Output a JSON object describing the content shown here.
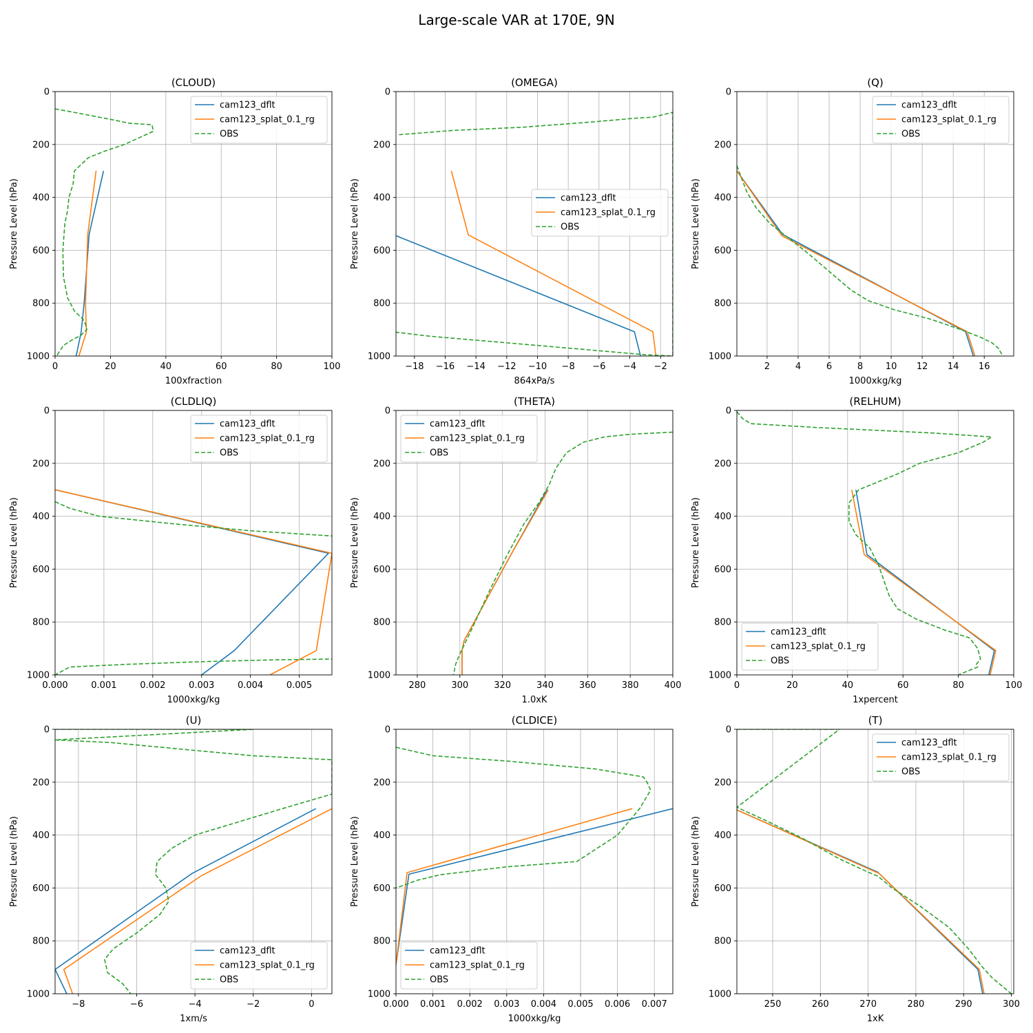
{
  "figure": {
    "title": "Large-scale VAR at 170E, 9N",
    "ylabel": "Pressure Level (hPa)"
  },
  "series_styles": [
    {
      "name": "cam123_dflt",
      "color": "#1f77b4",
      "dash": "solid"
    },
    {
      "name": "cam123_splat_0.1_rg",
      "color": "#ff7f0e",
      "dash": "solid"
    },
    {
      "name": "OBS",
      "color": "#2ca02c",
      "dash": "dashed"
    }
  ],
  "chart_data": [
    {
      "type": "line",
      "title": "(CLOUD)",
      "xlabel": "100xfraction",
      "ylabel": "Pressure Level (hPa)",
      "xlim": [
        0,
        100
      ],
      "ylim": [
        1000,
        0
      ],
      "xticks": [
        0,
        20,
        40,
        60,
        80,
        100
      ],
      "xtick_labels": [
        "0",
        "20",
        "40",
        "60",
        "80",
        "100"
      ],
      "yticks": [
        0,
        200,
        400,
        600,
        800,
        1000
      ],
      "ytick_labels": [
        "0",
        "200",
        "400",
        "600",
        "800",
        "1000"
      ],
      "legend": "top-right",
      "series": [
        {
          "name": "cam123_dflt",
          "x": [
            17.5,
            12.3,
            10.5,
            9.4,
            7.6
          ],
          "y": [
            300,
            540,
            800,
            910,
            1000
          ]
        },
        {
          "name": "cam123_splat_0.1_rg",
          "x": [
            14.8,
            11.8,
            11.0,
            11.3,
            8.6
          ],
          "y": [
            300,
            540,
            800,
            910,
            1000
          ]
        },
        {
          "name": "OBS",
          "x": [
            0,
            10,
            20,
            27,
            35,
            35.5,
            25,
            18,
            12,
            7,
            6.5,
            5,
            4.5,
            3.5,
            2.8,
            3,
            4.5,
            7,
            10,
            11,
            11.5,
            9.5,
            6,
            3,
            0.5
          ],
          "y": [
            65,
            85,
            105,
            120,
            125,
            150,
            200,
            225,
            250,
            300,
            350,
            400,
            450,
            500,
            600,
            700,
            780,
            830,
            860,
            880,
            900,
            920,
            940,
            960,
            1000
          ]
        }
      ]
    },
    {
      "type": "line",
      "title": "(OMEGA)",
      "xlabel": "864xPa/s",
      "ylabel": "Pressure Level (hPa)",
      "xlim": [
        -19.2,
        -1.2
      ],
      "ylim": [
        1000,
        0
      ],
      "xticks": [
        -18,
        -16,
        -14,
        -12,
        -10,
        -8,
        -6,
        -4,
        -2
      ],
      "xtick_labels": [
        "−18",
        "−16",
        "−14",
        "−12",
        "−10",
        "−8",
        "−6",
        "−4",
        "−2"
      ],
      "yticks": [
        0,
        200,
        400,
        600,
        800,
        1000
      ],
      "ytick_labels": [
        "0",
        "200",
        "400",
        "600",
        "800",
        "1000"
      ],
      "legend": "center-right",
      "series": [
        {
          "name": "cam123_dflt",
          "x": [
            -19.2,
            -3.7,
            -3.3
          ],
          "y": [
            545,
            908,
            1000
          ]
        },
        {
          "name": "cam123_splat_0.1_rg",
          "x": [
            -15.6,
            -14.5,
            -2.5,
            -2.3
          ],
          "y": [
            300,
            542,
            908,
            1000
          ]
        },
        {
          "name": "OBS",
          "x": [
            -19.0,
            -15.5,
            -11.0,
            -6.5,
            -3.5,
            -2.5,
            -1.2,
            -1.2,
            -3.0,
            -6.0,
            -10.0,
            -14.0,
            -17.0,
            -19.2
          ],
          "y": [
            163,
            147,
            135,
            115,
            100,
            97,
            78,
            1000,
            995,
            980,
            960,
            940,
            925,
            910
          ]
        }
      ]
    },
    {
      "type": "line",
      "title": "(Q)",
      "xlabel": "1000xkg/kg",
      "ylabel": "Pressure Level (hPa)",
      "xlim": [
        0.05,
        17.9
      ],
      "ylim": [
        1000,
        0
      ],
      "xticks": [
        2,
        4,
        6,
        8,
        10,
        12,
        14,
        16
      ],
      "xtick_labels": [
        "2",
        "4",
        "6",
        "8",
        "10",
        "12",
        "14",
        "16"
      ],
      "yticks": [
        0,
        200,
        400,
        600,
        800,
        1000
      ],
      "ytick_labels": [
        "0",
        "200",
        "400",
        "600",
        "800",
        "1000"
      ],
      "legend": "top-right",
      "series": [
        {
          "name": "cam123_dflt",
          "x": [
            0.05,
            3.0,
            14.8,
            15.3
          ],
          "y": [
            300,
            540,
            908,
            1000
          ]
        },
        {
          "name": "cam123_splat_0.1_rg",
          "x": [
            0.05,
            2.95,
            14.9,
            15.4
          ],
          "y": [
            300,
            545,
            908,
            1000
          ]
        },
        {
          "name": "OBS",
          "x": [
            0.05,
            0.3,
            0.7,
            1.3,
            2.2,
            3.3,
            4.6,
            6.0,
            7.4,
            8.5,
            10.2,
            12.5,
            14.5,
            15.8,
            16.5,
            16.9,
            17.2
          ],
          "y": [
            280,
            320,
            380,
            440,
            500,
            550,
            610,
            680,
            750,
            790,
            825,
            860,
            900,
            930,
            950,
            970,
            1000
          ]
        }
      ]
    },
    {
      "type": "line",
      "title": "(CLDLIQ)",
      "xlabel": "1000xkg/kg",
      "ylabel": "Pressure Level (hPa)",
      "xlim": [
        0,
        0.00567
      ],
      "ylim": [
        1000,
        0
      ],
      "xticks": [
        0,
        0.001,
        0.002,
        0.003,
        0.004,
        0.005
      ],
      "xtick_labels": [
        "0.000",
        "0.001",
        "0.002",
        "0.003",
        "0.004",
        "0.005"
      ],
      "yticks": [
        0,
        200,
        400,
        600,
        800,
        1000
      ],
      "ytick_labels": [
        "0",
        "200",
        "400",
        "600",
        "800",
        "1000"
      ],
      "legend": "top-right",
      "series": [
        {
          "name": "cam123_dflt",
          "x": [
            0.0,
            0.0056,
            0.00367,
            0.003
          ],
          "y": [
            300,
            540,
            908,
            1000
          ]
        },
        {
          "name": "cam123_splat_0.1_rg",
          "x": [
            0.0,
            0.00567,
            0.00535,
            0.0044
          ],
          "y": [
            300,
            540,
            908,
            1000
          ]
        },
        {
          "name": "OBS",
          "x": [
            0.0,
            0.0003,
            0.0009,
            0.0025,
            0.004,
            0.0057,
            0.0057,
            0.0045,
            0.003,
            0.0015,
            0.0003,
            0.0
          ],
          "y": [
            345,
            370,
            400,
            430,
            455,
            475,
            940,
            943,
            950,
            960,
            970,
            1000
          ]
        }
      ]
    },
    {
      "type": "line",
      "title": "(THETA)",
      "xlabel": "1.0xK",
      "ylabel": "Pressure Level (hPa)",
      "xlim": [
        270,
        400
      ],
      "ylim": [
        1000,
        0
      ],
      "xticks": [
        280,
        300,
        320,
        340,
        360,
        380,
        400
      ],
      "xtick_labels": [
        "280",
        "300",
        "320",
        "340",
        "360",
        "380",
        "400"
      ],
      "yticks": [
        0,
        200,
        400,
        600,
        800,
        1000
      ],
      "ytick_labels": [
        "0",
        "200",
        "400",
        "600",
        "800",
        "1000"
      ],
      "legend": "top-left",
      "series": [
        {
          "name": "cam123_dflt",
          "x": [
            341,
            324,
            302,
            301,
            301
          ],
          "y": [
            300,
            545,
            870,
            908,
            1000
          ]
        },
        {
          "name": "cam123_splat_0.1_rg",
          "x": [
            341.5,
            324,
            302,
            301,
            301
          ],
          "y": [
            300,
            545,
            870,
            908,
            1000
          ]
        },
        {
          "name": "OBS",
          "x": [
            400,
            380,
            368,
            358,
            350,
            345,
            342,
            337,
            330,
            322,
            314,
            306,
            300,
            298,
            297
          ],
          "y": [
            82,
            90,
            100,
            120,
            160,
            220,
            280,
            350,
            430,
            550,
            680,
            820,
            920,
            960,
            1000
          ]
        }
      ]
    },
    {
      "type": "line",
      "title": "(RELHUM)",
      "xlabel": "1xpercent",
      "ylabel": "Pressure Level (hPa)",
      "xlim": [
        0,
        100
      ],
      "ylim": [
        1000,
        0
      ],
      "xticks": [
        0,
        20,
        40,
        60,
        80,
        100
      ],
      "xtick_labels": [
        "0",
        "20",
        "40",
        "60",
        "80",
        "100"
      ],
      "yticks": [
        0,
        200,
        400,
        600,
        800,
        1000
      ],
      "ytick_labels": [
        "0",
        "200",
        "400",
        "600",
        "800",
        "1000"
      ],
      "legend": "bottom-left",
      "series": [
        {
          "name": "cam123_dflt",
          "x": [
            43,
            47,
            93,
            91
          ],
          "y": [
            300,
            545,
            908,
            1000
          ]
        },
        {
          "name": "cam123_splat_0.1_rg",
          "x": [
            41.5,
            46,
            93.5,
            91.5
          ],
          "y": [
            300,
            545,
            908,
            1000
          ]
        },
        {
          "name": "OBS",
          "x": [
            0,
            2,
            5,
            30,
            70,
            92,
            89,
            80,
            66,
            58,
            51,
            44,
            40.5,
            40.5,
            43,
            48,
            51,
            53,
            55,
            58,
            65,
            75,
            84,
            87,
            88,
            86.5,
            87,
            80
          ],
          "y": [
            5,
            30,
            50,
            65,
            85,
            100,
            120,
            160,
            200,
            240,
            270,
            300,
            350,
            420,
            470,
            520,
            580,
            640,
            700,
            750,
            790,
            830,
            860,
            900,
            940,
            960,
            970,
            1000
          ]
        }
      ]
    },
    {
      "type": "line",
      "title": "(U)",
      "xlabel": "1xm/s",
      "ylabel": "Pressure Level (hPa)",
      "xlim": [
        -8.8,
        0.7
      ],
      "ylim": [
        1000,
        0
      ],
      "xticks": [
        -8,
        -6,
        -4,
        -2,
        0
      ],
      "xtick_labels": [
        "−8",
        "−6",
        "−4",
        "−2",
        "0"
      ],
      "yticks": [
        0,
        200,
        400,
        600,
        800,
        1000
      ],
      "ytick_labels": [
        "0",
        "200",
        "400",
        "600",
        "800",
        "1000"
      ],
      "legend": "bottom-right",
      "series": [
        {
          "name": "cam123_dflt",
          "x": [
            0.15,
            -4.1,
            -8.8,
            -8.4
          ],
          "y": [
            300,
            545,
            908,
            1000
          ]
        },
        {
          "name": "cam123_splat_0.1_rg",
          "x": [
            0.7,
            -3.8,
            -8.5,
            -8.2
          ],
          "y": [
            300,
            555,
            908,
            1000
          ]
        },
        {
          "name": "OBS",
          "x": [
            -8.8,
            -2.0,
            -8.8,
            -6.9,
            -4.0,
            -2.0,
            0.7,
            0.7,
            -1.0,
            -2.5,
            -4.0,
            -4.8,
            -5.3,
            -5.35,
            -5.0,
            -4.9,
            -5.2,
            -6.0,
            -6.8,
            -7.1,
            -7.0,
            -6.5,
            -6.2
          ],
          "y": [
            0,
            0,
            40,
            50,
            80,
            100,
            115,
            245,
            300,
            350,
            400,
            450,
            500,
            550,
            600,
            650,
            700,
            770,
            830,
            870,
            920,
            960,
            1000
          ]
        }
      ]
    },
    {
      "type": "line",
      "title": "(CLDICE)",
      "xlabel": "1000xkg/kg",
      "ylabel": "Pressure Level (hPa)",
      "xlim": [
        0,
        0.0075
      ],
      "ylim": [
        1000,
        0
      ],
      "xticks": [
        0,
        0.001,
        0.002,
        0.003,
        0.004,
        0.005,
        0.006,
        0.007
      ],
      "xtick_labels": [
        "0.000",
        "0.001",
        "0.002",
        "0.003",
        "0.004",
        "0.005",
        "0.006",
        "0.007"
      ],
      "yticks": [
        0,
        200,
        400,
        600,
        800,
        1000
      ],
      "ytick_labels": [
        "0",
        "200",
        "400",
        "600",
        "800",
        "1000"
      ],
      "legend": "bottom-left",
      "series": [
        {
          "name": "cam123_dflt",
          "x": [
            0.0075,
            0.00035,
            0.0
          ],
          "y": [
            300,
            548,
            890
          ]
        },
        {
          "name": "cam123_splat_0.1_rg",
          "x": [
            0.0064,
            0.0003,
            0.0
          ],
          "y": [
            300,
            542,
            890
          ]
        },
        {
          "name": "OBS",
          "x": [
            0.0,
            0.001,
            0.003,
            0.0054,
            0.0067,
            0.0068,
            0.0069,
            0.0066,
            0.006,
            0.0049,
            0.003,
            0.0012,
            0.0006,
            0.0
          ],
          "y": [
            68,
            100,
            120,
            150,
            180,
            200,
            230,
            300,
            400,
            500,
            520,
            550,
            570,
            600
          ]
        }
      ]
    },
    {
      "type": "line",
      "title": "(T)",
      "xlabel": "1xK",
      "ylabel": "Pressure Level (hPa)",
      "xlim": [
        242.5,
        300.5
      ],
      "ylim": [
        1000,
        0
      ],
      "xticks": [
        250,
        260,
        270,
        280,
        290,
        300
      ],
      "xtick_labels": [
        "250",
        "260",
        "270",
        "280",
        "290",
        "300"
      ],
      "yticks": [
        0,
        200,
        400,
        600,
        800,
        1000
      ],
      "ytick_labels": [
        "0",
        "200",
        "400",
        "600",
        "800",
        "1000"
      ],
      "legend": "top-right",
      "series": [
        {
          "name": "cam123_dflt",
          "x": [
            242.5,
            272,
            293,
            294
          ],
          "y": [
            305,
            540,
            908,
            1000
          ]
        },
        {
          "name": "cam123_splat_0.1_rg",
          "x": [
            242.5,
            272.3,
            293.3,
            294.3
          ],
          "y": [
            305,
            545,
            908,
            1000
          ]
        },
        {
          "name": "OBS",
          "x": [
            242.5,
            264,
            242.5,
            248,
            256,
            264,
            270,
            272,
            275,
            281,
            287,
            291,
            294,
            296,
            298,
            300
          ],
          "y": [
            0,
            0,
            295,
            340,
            410,
            490,
            540,
            555,
            600,
            670,
            750,
            830,
            900,
            940,
            970,
            1000
          ]
        }
      ]
    }
  ]
}
